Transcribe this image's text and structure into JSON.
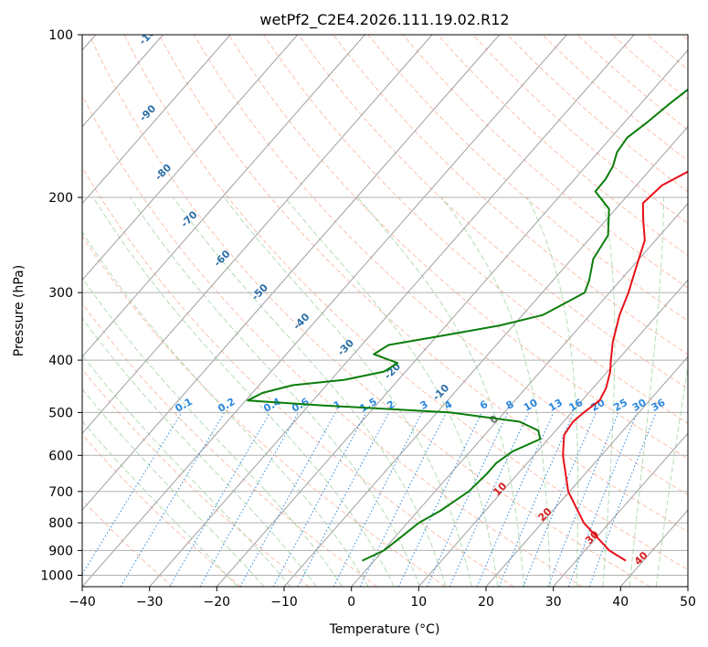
{
  "chart_data": {
    "type": "line",
    "subtype": "skew-t log-p",
    "title": "wetPf2_C2E4.2026.111.19.02.R12",
    "xlabel": "Temperature (°C)",
    "ylabel": "Pressure (hPa)",
    "xlim": [
      -40,
      50
    ],
    "ylim": [
      1050,
      100
    ],
    "x_ticks": [
      "−40",
      "−30",
      "−20",
      "−10",
      "0",
      "10",
      "20",
      "30",
      "40",
      "50"
    ],
    "y_ticks": [
      {
        "p": 100,
        "label": "100"
      },
      {
        "p": 200,
        "label": "200"
      },
      {
        "p": 300,
        "label": "300"
      },
      {
        "p": 400,
        "label": "400"
      },
      {
        "p": 500,
        "label": "500"
      },
      {
        "p": 600,
        "label": "600"
      },
      {
        "p": 700,
        "label": "700"
      },
      {
        "p": 800,
        "label": "800"
      },
      {
        "p": 900,
        "label": "900"
      },
      {
        "p": 1000,
        "label": "1000"
      }
    ],
    "grid": true,
    "colors": {
      "temperature": "#e8111a",
      "dewpoint": "#0b7d0b",
      "isotherm": "#a0a0a0",
      "dry_adiabat": "#f9a58a",
      "moist_adiabat": "#9bd19b",
      "mixing_ratio": "#2b88e0",
      "isotherm_label": "#2b6fa8",
      "moist_label": "#d62020",
      "zero_label": "#707070",
      "theta_curve": "#d2b48c"
    },
    "series": [
      {
        "name": "Temperature",
        "points": [
          {
            "p": 940,
            "t": 37.4
          },
          {
            "p": 900,
            "t": 33.6
          },
          {
            "p": 800,
            "t": 26.2
          },
          {
            "p": 700,
            "t": 19.8
          },
          {
            "p": 600,
            "t": 14.3
          },
          {
            "p": 550,
            "t": 11.8
          },
          {
            "p": 520,
            "t": 11.4
          },
          {
            "p": 500,
            "t": 11.8
          },
          {
            "p": 475,
            "t": 12.6
          },
          {
            "p": 450,
            "t": 11.9
          },
          {
            "p": 420,
            "t": 10.4
          },
          {
            "p": 400,
            "t": 9.0
          },
          {
            "p": 370,
            "t": 6.9
          },
          {
            "p": 330,
            "t": 4.4
          },
          {
            "p": 300,
            "t": 2.8
          },
          {
            "p": 270,
            "t": 0.7
          },
          {
            "p": 240,
            "t": -1.6
          },
          {
            "p": 220,
            "t": -4.5
          },
          {
            "p": 205,
            "t": -6.7
          },
          {
            "p": 190,
            "t": -6.2
          },
          {
            "p": 175,
            "t": -3.3
          },
          {
            "p": 160,
            "t": -0.6
          },
          {
            "p": 150,
            "t": 1.6
          },
          {
            "p": 140,
            "t": 3.3
          },
          {
            "p": 130,
            "t": 4.5
          },
          {
            "p": 120,
            "t": 5.8
          },
          {
            "p": 110,
            "t": 8.2
          },
          {
            "p": 100,
            "t": 13.2
          }
        ]
      },
      {
        "name": "Dewpoint",
        "points": [
          {
            "p": 940,
            "t": -1.8
          },
          {
            "p": 900,
            "t": 0.1
          },
          {
            "p": 850,
            "t": 0.9
          },
          {
            "p": 800,
            "t": 1.7
          },
          {
            "p": 760,
            "t": 3.3
          },
          {
            "p": 700,
            "t": 5.0
          },
          {
            "p": 650,
            "t": 5.4
          },
          {
            "p": 620,
            "t": 5.4
          },
          {
            "p": 590,
            "t": 6.3
          },
          {
            "p": 560,
            "t": 8.8
          },
          {
            "p": 540,
            "t": 7.4
          },
          {
            "p": 520,
            "t": 3.5
          },
          {
            "p": 500,
            "t": -8.0
          },
          {
            "p": 485,
            "t": -28.0
          },
          {
            "p": 475,
            "t": -39.7
          },
          {
            "p": 460,
            "t": -38.5
          },
          {
            "p": 445,
            "t": -35.0
          },
          {
            "p": 435,
            "t": -28.0
          },
          {
            "p": 420,
            "t": -23.2
          },
          {
            "p": 405,
            "t": -22.3
          },
          {
            "p": 390,
            "t": -27.0
          },
          {
            "p": 375,
            "t": -26.0
          },
          {
            "p": 360,
            "t": -19.0
          },
          {
            "p": 345,
            "t": -12.0
          },
          {
            "p": 330,
            "t": -7.0
          },
          {
            "p": 300,
            "t": -3.7
          },
          {
            "p": 285,
            "t": -4.6
          },
          {
            "p": 260,
            "t": -6.8
          },
          {
            "p": 235,
            "t": -7.7
          },
          {
            "p": 210,
            "t": -11.0
          },
          {
            "p": 195,
            "t": -15.3
          },
          {
            "p": 185,
            "t": -15.4
          },
          {
            "p": 175,
            "t": -16.0
          },
          {
            "p": 165,
            "t": -17.2
          },
          {
            "p": 155,
            "t": -17.6
          },
          {
            "p": 145,
            "t": -16.6
          },
          {
            "p": 135,
            "t": -15.8
          },
          {
            "p": 125,
            "t": -14.7
          },
          {
            "p": 115,
            "t": -11.9
          },
          {
            "p": 105,
            "t": -9.5
          },
          {
            "p": 100,
            "t": -9.7
          }
        ]
      }
    ],
    "isotherm_labels": [
      {
        "t": -100,
        "label": "-100"
      },
      {
        "t": -90,
        "label": "-90"
      },
      {
        "t": -80,
        "label": "-80"
      },
      {
        "t": -70,
        "label": "-70"
      },
      {
        "t": -60,
        "label": "-60"
      },
      {
        "t": -50,
        "label": "-50"
      },
      {
        "t": -40,
        "label": "-40"
      },
      {
        "t": -30,
        "label": "-30"
      },
      {
        "t": -20,
        "label": "-20"
      },
      {
        "t": -10,
        "label": "-10"
      }
    ],
    "mixing_ratio_lines": [
      {
        "w": 0.1,
        "label": "0.1"
      },
      {
        "w": 0.2,
        "label": "0.2"
      },
      {
        "w": 0.4,
        "label": "0.4"
      },
      {
        "w": 0.6,
        "label": "0.6"
      },
      {
        "w": 1,
        "label": "1"
      },
      {
        "w": 1.5,
        "label": "1.5"
      },
      {
        "w": 2,
        "label": "2"
      },
      {
        "w": 3,
        "label": "3"
      },
      {
        "w": 4,
        "label": "4"
      },
      {
        "w": 6,
        "label": "6"
      },
      {
        "w": 8,
        "label": "8"
      },
      {
        "w": 10,
        "label": "10"
      },
      {
        "w": 13,
        "label": "13"
      },
      {
        "w": 16,
        "label": "16"
      },
      {
        "w": 20,
        "label": "20"
      },
      {
        "w": 25,
        "label": "25"
      },
      {
        "w": 30,
        "label": "30"
      },
      {
        "w": 36,
        "label": "36"
      }
    ],
    "moist_adiabat_labels": [
      {
        "t": 0,
        "label": "0"
      },
      {
        "t": 10,
        "label": "10"
      },
      {
        "t": 20,
        "label": "20"
      },
      {
        "t": 30,
        "label": "30"
      },
      {
        "t": 40,
        "label": "40"
      }
    ]
  }
}
